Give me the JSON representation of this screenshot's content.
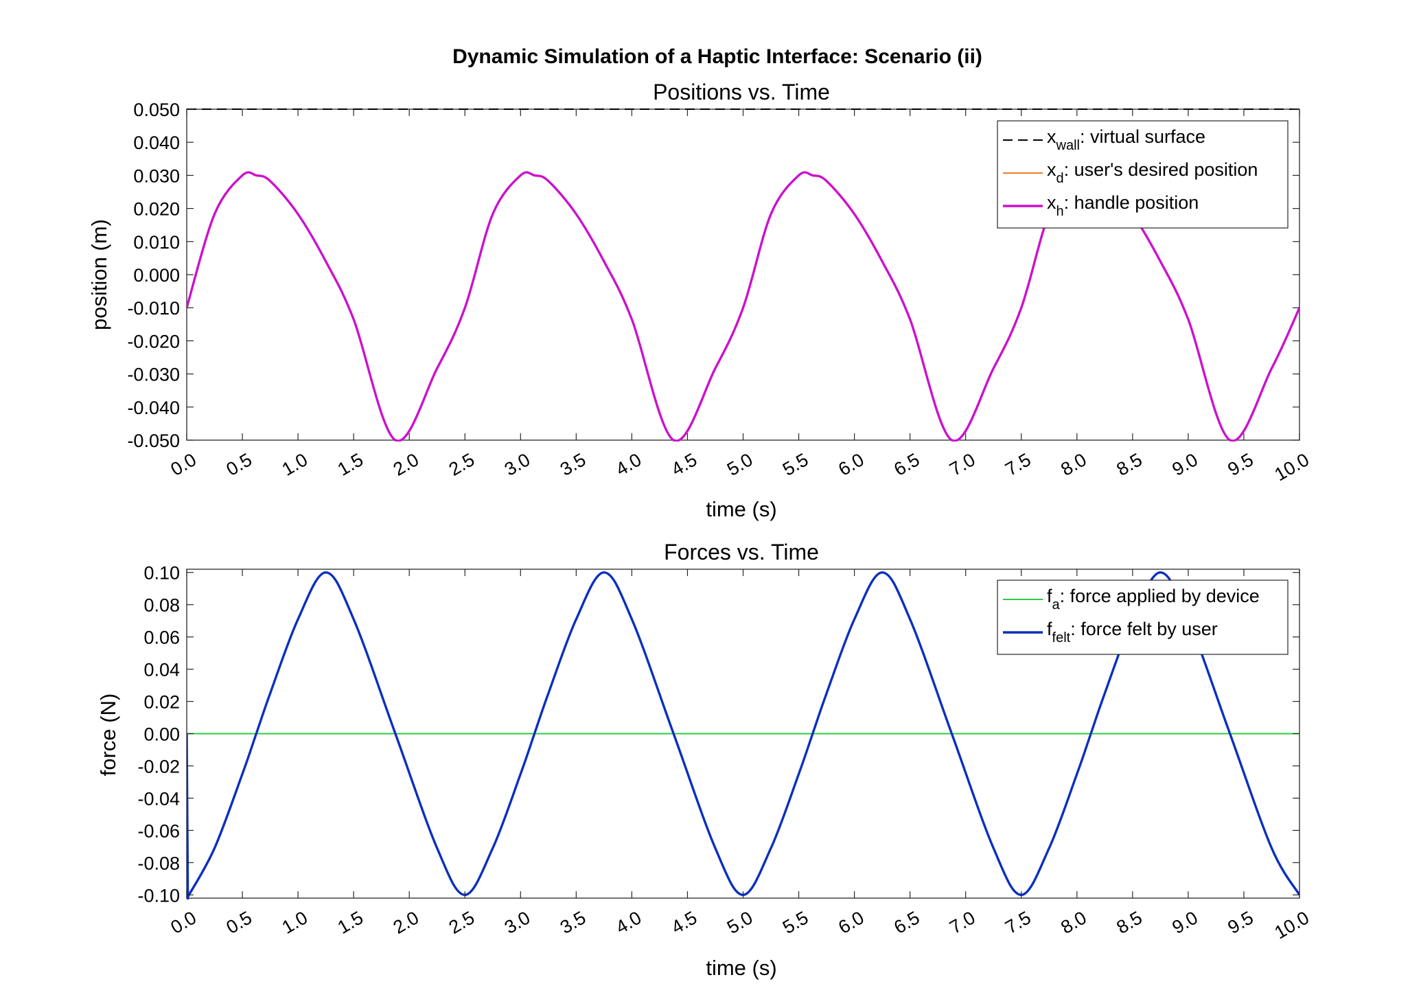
{
  "suptitle": "Dynamic Simulation of a Haptic Interface: Scenario (ii)",
  "chart_data": [
    {
      "type": "line",
      "title": "Positions vs. Time",
      "xlabel": "time (s)",
      "ylabel": "position (m)",
      "xlim": [
        0,
        10
      ],
      "ylim": [
        -0.05,
        0.05
      ],
      "x_ticks": [
        "0.0",
        "0.5",
        "1.0",
        "1.5",
        "2.0",
        "2.5",
        "3.0",
        "3.5",
        "4.0",
        "4.5",
        "5.0",
        "5.5",
        "6.0",
        "6.5",
        "7.0",
        "7.5",
        "8.0",
        "8.5",
        "9.0",
        "9.5",
        "10.0"
      ],
      "y_ticks": [
        "0.050",
        "0.040",
        "0.030",
        "0.020",
        "0.010",
        "0.000",
        "-0.010",
        "-0.020",
        "-0.030",
        "-0.040",
        "-0.050"
      ],
      "grid": false,
      "legend_position": "top-right",
      "series": [
        {
          "name": "x_wall: virtual surface",
          "legend_main": "x",
          "legend_sub": "wall",
          "legend_rest": ": virtual surface",
          "color": "#000000",
          "style": "dashed",
          "x": [
            0,
            10
          ],
          "y": [
            0.05,
            0.05
          ]
        },
        {
          "name": "x_d: user's desired position",
          "legend_main": "x",
          "legend_sub": "d",
          "legend_rest": ": user's desired position",
          "color": "#f07a2a",
          "style": "solid",
          "x": [
            0.0,
            0.25,
            0.5,
            0.625,
            0.75,
            1.0,
            1.25,
            1.5,
            1.875,
            2.25,
            2.5,
            2.75,
            3.0,
            3.125,
            3.25,
            3.5,
            3.75,
            4.0,
            4.375,
            4.75,
            5.0,
            5.25,
            5.5,
            5.625,
            5.75,
            6.0,
            6.25,
            6.5,
            6.875,
            7.25,
            7.5,
            7.75,
            8.0,
            8.125,
            8.25,
            8.5,
            8.75,
            9.0,
            9.375,
            9.75,
            10.0
          ],
          "y": [
            -0.01,
            0.0183,
            0.03,
            0.03,
            0.0283,
            0.0183,
            0.004,
            -0.0135,
            -0.05,
            -0.0283,
            -0.01,
            0.0183,
            0.03,
            0.03,
            0.0283,
            0.0183,
            0.004,
            -0.0135,
            -0.05,
            -0.0283,
            -0.01,
            0.0183,
            0.03,
            0.03,
            0.0283,
            0.0183,
            0.004,
            -0.0135,
            -0.05,
            -0.0283,
            -0.01,
            0.0183,
            0.03,
            0.03,
            0.0283,
            0.0183,
            0.004,
            -0.0135,
            -0.05,
            -0.0283,
            -0.01
          ]
        },
        {
          "name": "x_h: handle position",
          "legend_main": "x",
          "legend_sub": "h",
          "legend_rest": ": handle position",
          "color": "#cc11cc",
          "style": "solid",
          "x": [
            0.0,
            0.25,
            0.5,
            0.625,
            0.75,
            1.0,
            1.25,
            1.5,
            1.875,
            2.25,
            2.5,
            2.75,
            3.0,
            3.125,
            3.25,
            3.5,
            3.75,
            4.0,
            4.375,
            4.75,
            5.0,
            5.25,
            5.5,
            5.625,
            5.75,
            6.0,
            6.25,
            6.5,
            6.875,
            7.25,
            7.5,
            7.75,
            8.0,
            8.125,
            8.25,
            8.5,
            8.75,
            9.0,
            9.375,
            9.75,
            10.0
          ],
          "y": [
            -0.01,
            0.0183,
            0.03,
            0.03,
            0.0283,
            0.0183,
            0.004,
            -0.0135,
            -0.05,
            -0.0283,
            -0.01,
            0.0183,
            0.03,
            0.03,
            0.0283,
            0.0183,
            0.004,
            -0.0135,
            -0.05,
            -0.0283,
            -0.01,
            0.0183,
            0.03,
            0.03,
            0.0283,
            0.0183,
            0.004,
            -0.0135,
            -0.05,
            -0.0283,
            -0.01,
            0.0183,
            0.03,
            0.03,
            0.0283,
            0.0183,
            0.004,
            -0.0135,
            -0.05,
            -0.0283,
            -0.01
          ]
        }
      ]
    },
    {
      "type": "line",
      "title": "Forces vs. Time",
      "xlabel": "time (s)",
      "ylabel": "force (N)",
      "xlim": [
        0,
        10
      ],
      "ylim": [
        -0.102,
        0.102
      ],
      "x_ticks": [
        "0.0",
        "0.5",
        "1.0",
        "1.5",
        "2.0",
        "2.5",
        "3.0",
        "3.5",
        "4.0",
        "4.5",
        "5.0",
        "5.5",
        "6.0",
        "6.5",
        "7.0",
        "7.5",
        "8.0",
        "8.5",
        "9.0",
        "9.5",
        "10.0"
      ],
      "y_ticks": [
        "0.10",
        "0.08",
        "0.06",
        "0.04",
        "0.02",
        "0.00",
        "-0.02",
        "-0.04",
        "-0.06",
        "-0.08",
        "-0.10"
      ],
      "grid": false,
      "legend_position": "top-right",
      "series": [
        {
          "name": "f_a: force applied by device",
          "legend_main": "f",
          "legend_sub": "a",
          "legend_rest": ": force applied by device",
          "color": "#2ecc40",
          "style": "solid",
          "x": [
            0,
            10
          ],
          "y": [
            0,
            0
          ]
        },
        {
          "name": "f_felt: force felt by user",
          "legend_main": "f",
          "legend_sub": "felt",
          "legend_rest": ": force felt by user",
          "color": "#0a2fbf",
          "style": "solid",
          "x": [
            0.0,
            0.01,
            0.02,
            0.25,
            0.5,
            0.625,
            0.75,
            1.0,
            1.25,
            1.5,
            1.875,
            2.25,
            2.5,
            2.75,
            3.0,
            3.125,
            3.25,
            3.5,
            3.75,
            4.0,
            4.375,
            4.75,
            5.0,
            5.25,
            5.5,
            5.625,
            5.75,
            6.0,
            6.25,
            6.5,
            6.875,
            7.25,
            7.5,
            7.75,
            8.0,
            8.125,
            8.25,
            8.5,
            8.75,
            9.0,
            9.375,
            9.75,
            10.0
          ],
          "y": [
            0.0,
            -0.1,
            -0.1,
            -0.071,
            -0.025,
            0.0,
            0.025,
            0.071,
            0.1,
            0.071,
            0.0,
            -0.071,
            -0.1,
            -0.071,
            -0.025,
            0.0,
            0.025,
            0.071,
            0.1,
            0.071,
            0.0,
            -0.071,
            -0.1,
            -0.071,
            -0.025,
            0.0,
            0.025,
            0.071,
            0.1,
            0.071,
            0.0,
            -0.071,
            -0.1,
            -0.071,
            -0.025,
            0.0,
            0.025,
            0.071,
            0.1,
            0.071,
            0.0,
            -0.071,
            -0.1
          ]
        }
      ]
    }
  ]
}
